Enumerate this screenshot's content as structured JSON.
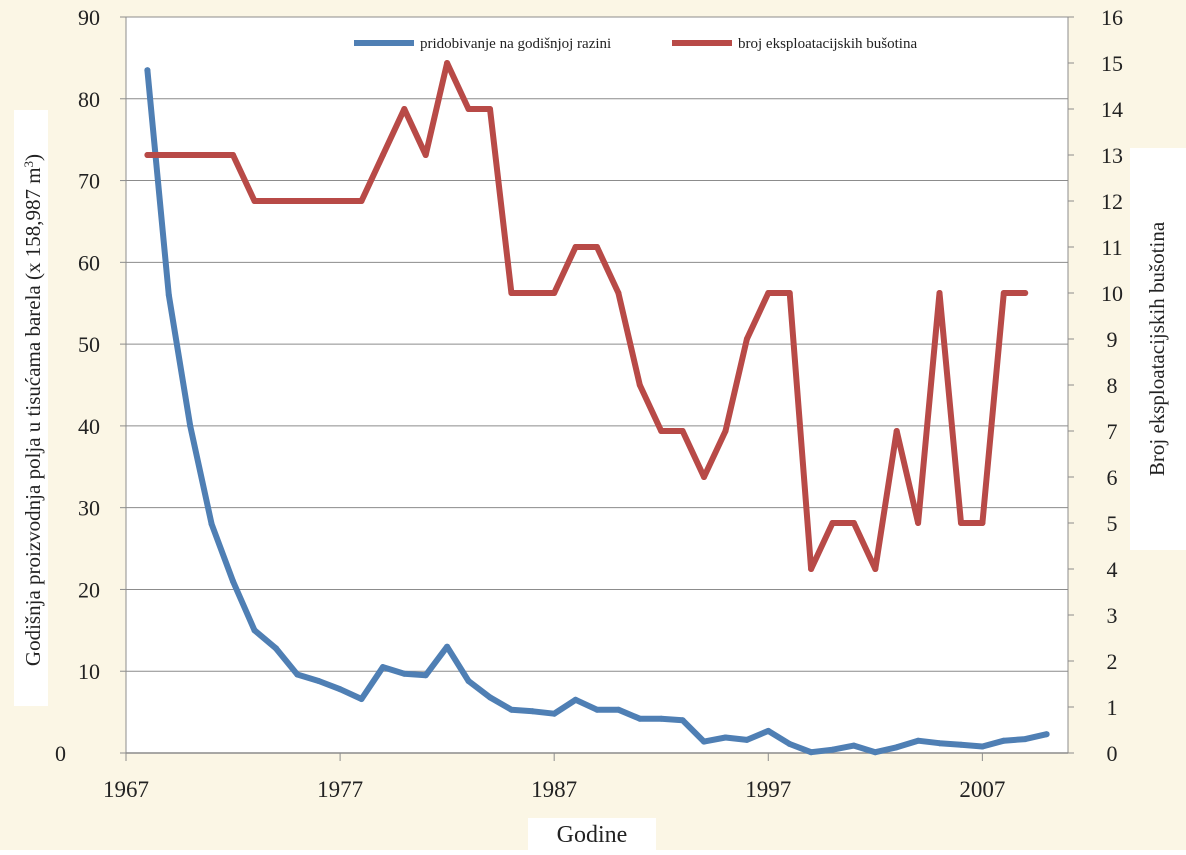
{
  "chart_data": {
    "type": "line",
    "xlabel": "Godine",
    "ylabel_left": "Godišnja proizvodnja polja u tisućama barela (x 158,987 m³)",
    "ylabel_right": "Broj eksploatacijskih bušotina",
    "xlim": [
      1967,
      2011
    ],
    "x_ticks": [
      "1967",
      "1977",
      "1987",
      "1997",
      "2007"
    ],
    "ylim_left": [
      0,
      90
    ],
    "y_ticks_left": [
      "0",
      "10",
      "20",
      "30",
      "40",
      "50",
      "60",
      "70",
      "80",
      "90"
    ],
    "ylim_right": [
      0,
      16
    ],
    "y_ticks_right": [
      "0",
      "1",
      "2",
      "3",
      "4",
      "5",
      "6",
      "7",
      "8",
      "9",
      "10",
      "11",
      "12",
      "13",
      "14",
      "15",
      "16"
    ],
    "grid": true,
    "legend_position": "top",
    "series": [
      {
        "name": "pridobivanje na godišnjoj razini",
        "axis": "left",
        "color": "#4f7fb4",
        "points": [
          [
            1968,
            83.5
          ],
          [
            1969,
            56
          ],
          [
            1970,
            40
          ],
          [
            1971,
            28
          ],
          [
            1972,
            21
          ],
          [
            1973,
            15
          ],
          [
            1974,
            12.8
          ],
          [
            1975,
            9.6
          ],
          [
            1976,
            8.8
          ],
          [
            1977,
            7.8
          ],
          [
            1978,
            6.6
          ],
          [
            1979,
            10.5
          ],
          [
            1980,
            9.7
          ],
          [
            1981,
            9.5
          ],
          [
            1982,
            13
          ],
          [
            1983,
            8.8
          ],
          [
            1984,
            6.8
          ],
          [
            1985,
            5.3
          ],
          [
            1986,
            5.1
          ],
          [
            1987,
            4.8
          ],
          [
            1988,
            6.5
          ],
          [
            1989,
            5.3
          ],
          [
            1990,
            5.3
          ],
          [
            1991,
            4.2
          ],
          [
            1992,
            4.2
          ],
          [
            1993,
            4.0
          ],
          [
            1994,
            1.4
          ],
          [
            1995,
            1.9
          ],
          [
            1996,
            1.6
          ],
          [
            1997,
            2.7
          ],
          [
            1998,
            1.1
          ],
          [
            1999,
            0.1
          ],
          [
            2000,
            0.4
          ],
          [
            2001,
            0.9
          ],
          [
            2002,
            0.1
          ],
          [
            2003,
            0.7
          ],
          [
            2004,
            1.5
          ],
          [
            2005,
            1.2
          ],
          [
            2006,
            1.0
          ],
          [
            2007,
            0.8
          ],
          [
            2008,
            1.5
          ],
          [
            2009,
            1.7
          ],
          [
            2010,
            2.3
          ]
        ]
      },
      {
        "name": "broj eksploatacijskih bušotina",
        "axis": "right",
        "color": "#b84a47",
        "points": [
          [
            1968,
            13
          ],
          [
            1969,
            13
          ],
          [
            1970,
            13
          ],
          [
            1971,
            13
          ],
          [
            1972,
            13
          ],
          [
            1973,
            12
          ],
          [
            1974,
            12
          ],
          [
            1975,
            12
          ],
          [
            1976,
            12
          ],
          [
            1977,
            12
          ],
          [
            1978,
            12
          ],
          [
            1979,
            13
          ],
          [
            1980,
            14
          ],
          [
            1981,
            13
          ],
          [
            1982,
            15
          ],
          [
            1983,
            14
          ],
          [
            1984,
            14
          ],
          [
            1985,
            10
          ],
          [
            1986,
            10
          ],
          [
            1987,
            10
          ],
          [
            1988,
            11
          ],
          [
            1989,
            11
          ],
          [
            1990,
            10
          ],
          [
            1991,
            8
          ],
          [
            1992,
            7
          ],
          [
            1993,
            7
          ],
          [
            1994,
            6
          ],
          [
            1995,
            7
          ],
          [
            1996,
            9
          ],
          [
            1997,
            10
          ],
          [
            1998,
            10
          ],
          [
            1999,
            4
          ],
          [
            2000,
            5
          ],
          [
            2001,
            5
          ],
          [
            2002,
            4
          ],
          [
            2003,
            7
          ],
          [
            2004,
            5
          ],
          [
            2005,
            10
          ],
          [
            2006,
            5
          ],
          [
            2007,
            5
          ],
          [
            2008,
            10
          ],
          [
            2009,
            10
          ]
        ]
      }
    ]
  }
}
